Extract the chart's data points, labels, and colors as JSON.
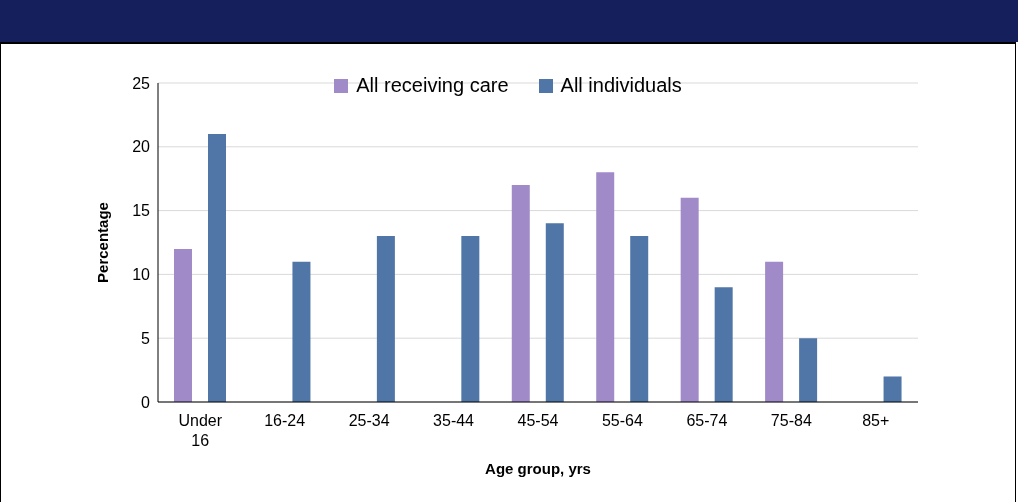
{
  "chart_data": {
    "type": "bar",
    "xlabel": "Age group, yrs",
    "ylabel": "Percentage",
    "categories": [
      "Under 16",
      "16-24",
      "25-34",
      "35-44",
      "45-54",
      "55-64",
      "65-74",
      "75-84",
      "85+"
    ],
    "series": [
      {
        "name": "All receiving care",
        "color": "#a08ac8",
        "values": [
          12,
          null,
          null,
          null,
          17,
          18,
          16,
          11,
          null
        ]
      },
      {
        "name": "All individuals",
        "color": "#4f76a6",
        "values": [
          21,
          11,
          13,
          13,
          14,
          13,
          9,
          5,
          2
        ]
      }
    ],
    "ylim": [
      0,
      25
    ],
    "yticks": [
      0,
      5,
      10,
      15,
      20,
      25
    ],
    "grid": "y",
    "legend": "top"
  }
}
